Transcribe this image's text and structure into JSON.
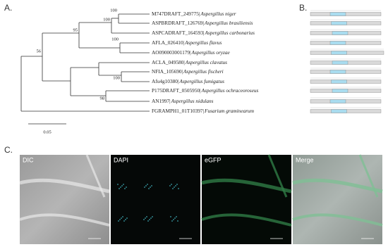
{
  "panels": {
    "a": {
      "label": "A.",
      "leaves": [
        {
          "id": "M747DRAFT_249775|",
          "species": "Aspergillus niger"
        },
        {
          "id": "ASPBRDRAFT_126769|",
          "species": "Aspergillus brasiliensis"
        },
        {
          "id": "ASPCADRAFT_164593|",
          "species": "Aspergillus carbonarius"
        },
        {
          "id": "AFLA_026410|",
          "species": "Aspergillus flavus"
        },
        {
          "id": "AO090003001179|",
          "species": "Aspergillus oryzae"
        },
        {
          "id": "ACLA_049580|",
          "species": "Aspergillus clavatus"
        },
        {
          "id": "NFIA_105690|",
          "species": "Aspergillus fischeri"
        },
        {
          "id": "Afu4g10380|",
          "species": "Aspergillus fumigatus"
        },
        {
          "id": "P175DRAFT_0505950|",
          "species": "Aspergillus ochraceoroseus"
        },
        {
          "id": "AN1997|",
          "species": "Aspergillus nidulans"
        },
        {
          "id": "FGRAMPH1_01T10397|",
          "species": "Fusarium graminearum"
        }
      ],
      "bootstrap": [
        100,
        100,
        95,
        100,
        56,
        100,
        98
      ],
      "scale_bar": "0.05"
    },
    "b": {
      "label": "B."
    },
    "c": {
      "label": "C.",
      "images": [
        "DIC",
        "DAPI",
        "eGFP",
        "Merge"
      ]
    }
  }
}
